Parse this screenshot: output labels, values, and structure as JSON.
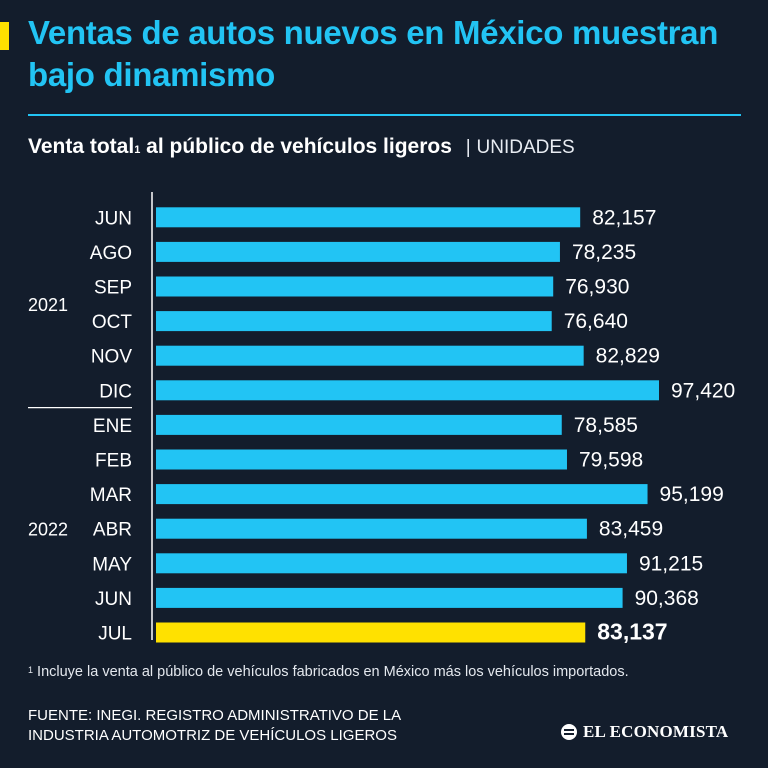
{
  "title": "Ventas de autos nuevos en México muestran bajo dinamismo",
  "subtitle": {
    "main": "Venta total",
    "footnote_mark": "1",
    "rest": " al público de vehículos ligeros",
    "separator": "|",
    "unit": "UNIDADES"
  },
  "footnote": {
    "mark": "1",
    "text": " Incluye la venta al público de vehículos fabricados en México más los vehículos importados."
  },
  "source": {
    "line1": "FUENTE:  INEGI. REGISTRO ADMINISTRATIVO DE LA",
    "line2": "INDUSTRIA AUTOMOTRIZ DE VEHÍCULOS LIGEROS"
  },
  "logo": {
    "text": "EL ECONOMISTA"
  },
  "colors": {
    "background": "#131d2c",
    "bar": "#22c4f4",
    "highlight": "#ffe100",
    "accent": "#ffe100",
    "text": "#ffffff"
  },
  "chart_data": {
    "type": "bar",
    "orientation": "horizontal",
    "title": "Venta total al público de vehículos ligeros",
    "unit": "UNIDADES",
    "categories": [
      "JUN",
      "AGO",
      "SEP",
      "OCT",
      "NOV",
      "DIC",
      "ENE",
      "FEB",
      "MAR",
      "ABR",
      "MAY",
      "JUN",
      "JUL"
    ],
    "values": [
      82157,
      78235,
      76930,
      76640,
      82829,
      97420,
      78585,
      79598,
      95199,
      83459,
      91215,
      90368,
      83137
    ],
    "value_labels": [
      "82,157",
      "78,235",
      "76,930",
      "76,640",
      "82,829",
      "97,420",
      "78,585",
      "79,598",
      "95,199",
      "83,459",
      "91,215",
      "90,368",
      "83,137"
    ],
    "highlight_index": 12,
    "groups": [
      {
        "label": "2021",
        "start": 0,
        "end": 5
      },
      {
        "label": "2022",
        "start": 6,
        "end": 12
      }
    ],
    "xlim": [
      0,
      97420
    ],
    "grid": false,
    "legend": "none"
  }
}
